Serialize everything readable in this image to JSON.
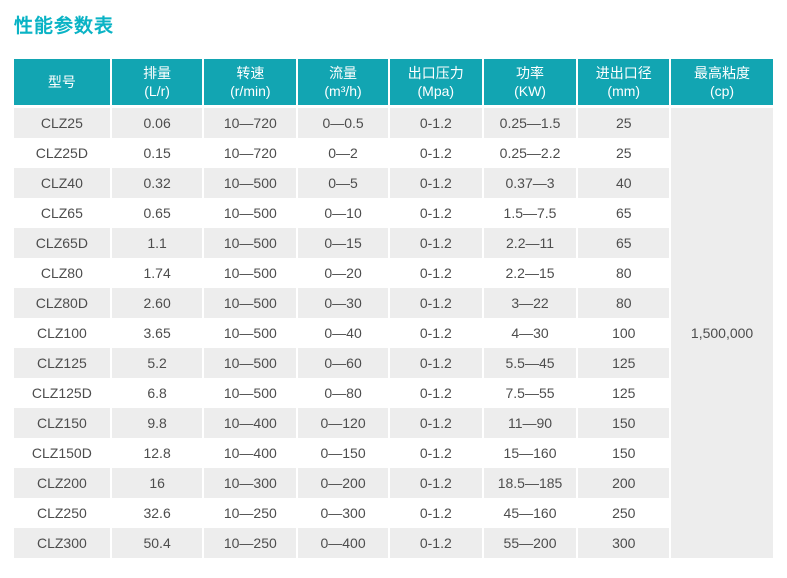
{
  "page": {
    "title": "性能参数表"
  },
  "colors": {
    "title_accent": "#0ab3c5",
    "header_teal": "#12a5b2",
    "row_stripe": "#ededed",
    "body_text": "#4d4d4d"
  },
  "table": {
    "headers": [
      {
        "label": "型号",
        "unit": ""
      },
      {
        "label": "排量",
        "unit": "(L/r)"
      },
      {
        "label": "转速",
        "unit": "(r/min)"
      },
      {
        "label": "流量",
        "unit": "(m³/h)"
      },
      {
        "label": "出口压力",
        "unit": "(Mpa)"
      },
      {
        "label": "功率",
        "unit": "(KW)"
      },
      {
        "label": "进出口径",
        "unit": "(mm)"
      },
      {
        "label": "最高粘度",
        "unit": "(cp)"
      }
    ],
    "rows": [
      [
        "CLZ25",
        "0.06",
        "10—720",
        "0—0.5",
        "0-1.2",
        "0.25—1.5",
        "25"
      ],
      [
        "CLZ25D",
        "0.15",
        "10—720",
        "0—2",
        "0-1.2",
        "0.25—2.2",
        "25"
      ],
      [
        "CLZ40",
        "0.32",
        "10—500",
        "0—5",
        "0-1.2",
        "0.37—3",
        "40"
      ],
      [
        "CLZ65",
        "0.65",
        "10—500",
        "0—10",
        "0-1.2",
        "1.5—7.5",
        "65"
      ],
      [
        "CLZ65D",
        "1.1",
        "10—500",
        "0—15",
        "0-1.2",
        "2.2—11",
        "65"
      ],
      [
        "CLZ80",
        "1.74",
        "10—500",
        "0—20",
        "0-1.2",
        "2.2—15",
        "80"
      ],
      [
        "CLZ80D",
        "2.60",
        "10—500",
        "0—30",
        "0-1.2",
        "3—22",
        "80"
      ],
      [
        "CLZ100",
        "3.65",
        "10—500",
        "0—40",
        "0-1.2",
        "4—30",
        "100"
      ],
      [
        "CLZ125",
        "5.2",
        "10—500",
        "0—60",
        "0-1.2",
        "5.5—45",
        "125"
      ],
      [
        "CLZ125D",
        "6.8",
        "10—500",
        "0—80",
        "0-1.2",
        "7.5—55",
        "125"
      ],
      [
        "CLZ150",
        "9.8",
        "10—400",
        "0—120",
        "0-1.2",
        "11—90",
        "150"
      ],
      [
        "CLZ150D",
        "12.8",
        "10—400",
        "0—150",
        "0-1.2",
        "15—160",
        "150"
      ],
      [
        "CLZ200",
        "16",
        "10—300",
        "0—200",
        "0-1.2",
        "18.5—185",
        "200"
      ],
      [
        "CLZ250",
        "32.6",
        "10—250",
        "0—300",
        "0-1.2",
        "45—160",
        "250"
      ],
      [
        "CLZ300",
        "50.4",
        "10—250",
        "0—400",
        "0-1.2",
        "55—200",
        "300"
      ]
    ],
    "merged_viscosity": "1,500,000"
  }
}
